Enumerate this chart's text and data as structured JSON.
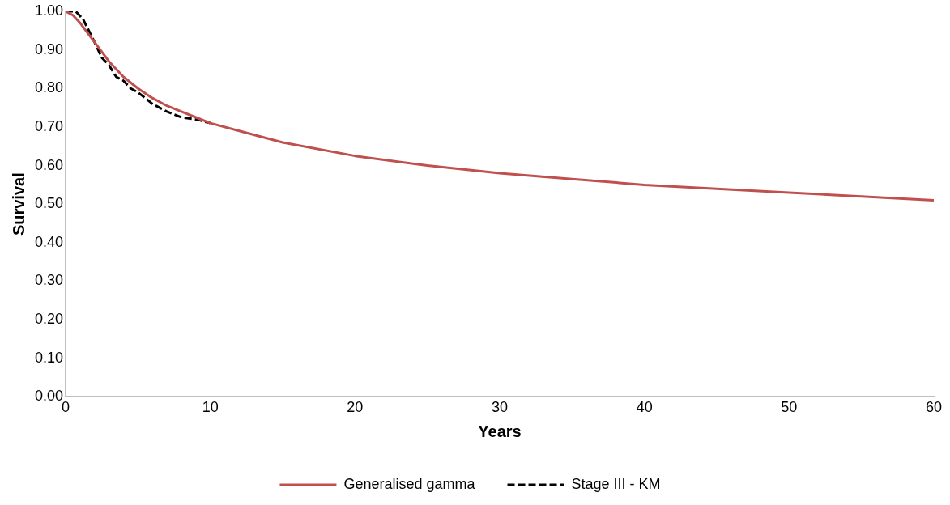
{
  "chart_data": {
    "type": "line",
    "xlabel": "Years",
    "ylabel": "Survival",
    "xlim": [
      0,
      60
    ],
    "xticks": [
      0,
      10,
      20,
      30,
      40,
      50,
      60
    ],
    "ylim": [
      0,
      1
    ],
    "yticks": [
      {
        "value": 0,
        "label": "0.00"
      },
      {
        "value": 0.1,
        "label": "0.10"
      },
      {
        "value": 0.2,
        "label": "0.20"
      },
      {
        "value": 0.3,
        "label": "0.30"
      },
      {
        "value": 0.4,
        "label": "0.40"
      },
      {
        "value": 0.5,
        "label": "0.50"
      },
      {
        "value": 0.6,
        "label": "0.60"
      },
      {
        "value": 0.7,
        "label": "0.70"
      },
      {
        "value": 0.8,
        "label": "0.80"
      },
      {
        "value": 0.9,
        "label": "0.90"
      },
      {
        "value": 1,
        "label": "1.00"
      }
    ],
    "grid": false,
    "legend": "bottom",
    "marker": "none",
    "series": [
      {
        "name": "Generalised gamma",
        "color": "#c0504d",
        "line_style": "solid",
        "x": [
          0,
          0.5,
          1,
          2,
          3,
          4,
          5,
          6,
          7,
          8,
          9,
          10,
          12,
          15,
          20,
          25,
          30,
          35,
          40,
          45,
          50,
          55,
          60
        ],
        "values": [
          1.0,
          0.99,
          0.97,
          0.92,
          0.87,
          0.83,
          0.8,
          0.775,
          0.755,
          0.74,
          0.725,
          0.71,
          0.69,
          0.66,
          0.625,
          0.6,
          0.58,
          0.565,
          0.55,
          0.54,
          0.53,
          0.52,
          0.51
        ]
      },
      {
        "name": "Stage III - KM",
        "color": "#000000",
        "line_style": "dashed",
        "x": [
          0,
          0.7,
          1.2,
          2,
          2.5,
          3,
          3.5,
          4,
          4.5,
          5,
          5.5,
          6,
          6.5,
          7,
          8,
          9,
          10
        ],
        "values": [
          1.0,
          1.0,
          0.98,
          0.92,
          0.88,
          0.86,
          0.83,
          0.82,
          0.8,
          0.79,
          0.775,
          0.76,
          0.75,
          0.74,
          0.725,
          0.72,
          0.71
        ]
      }
    ]
  }
}
